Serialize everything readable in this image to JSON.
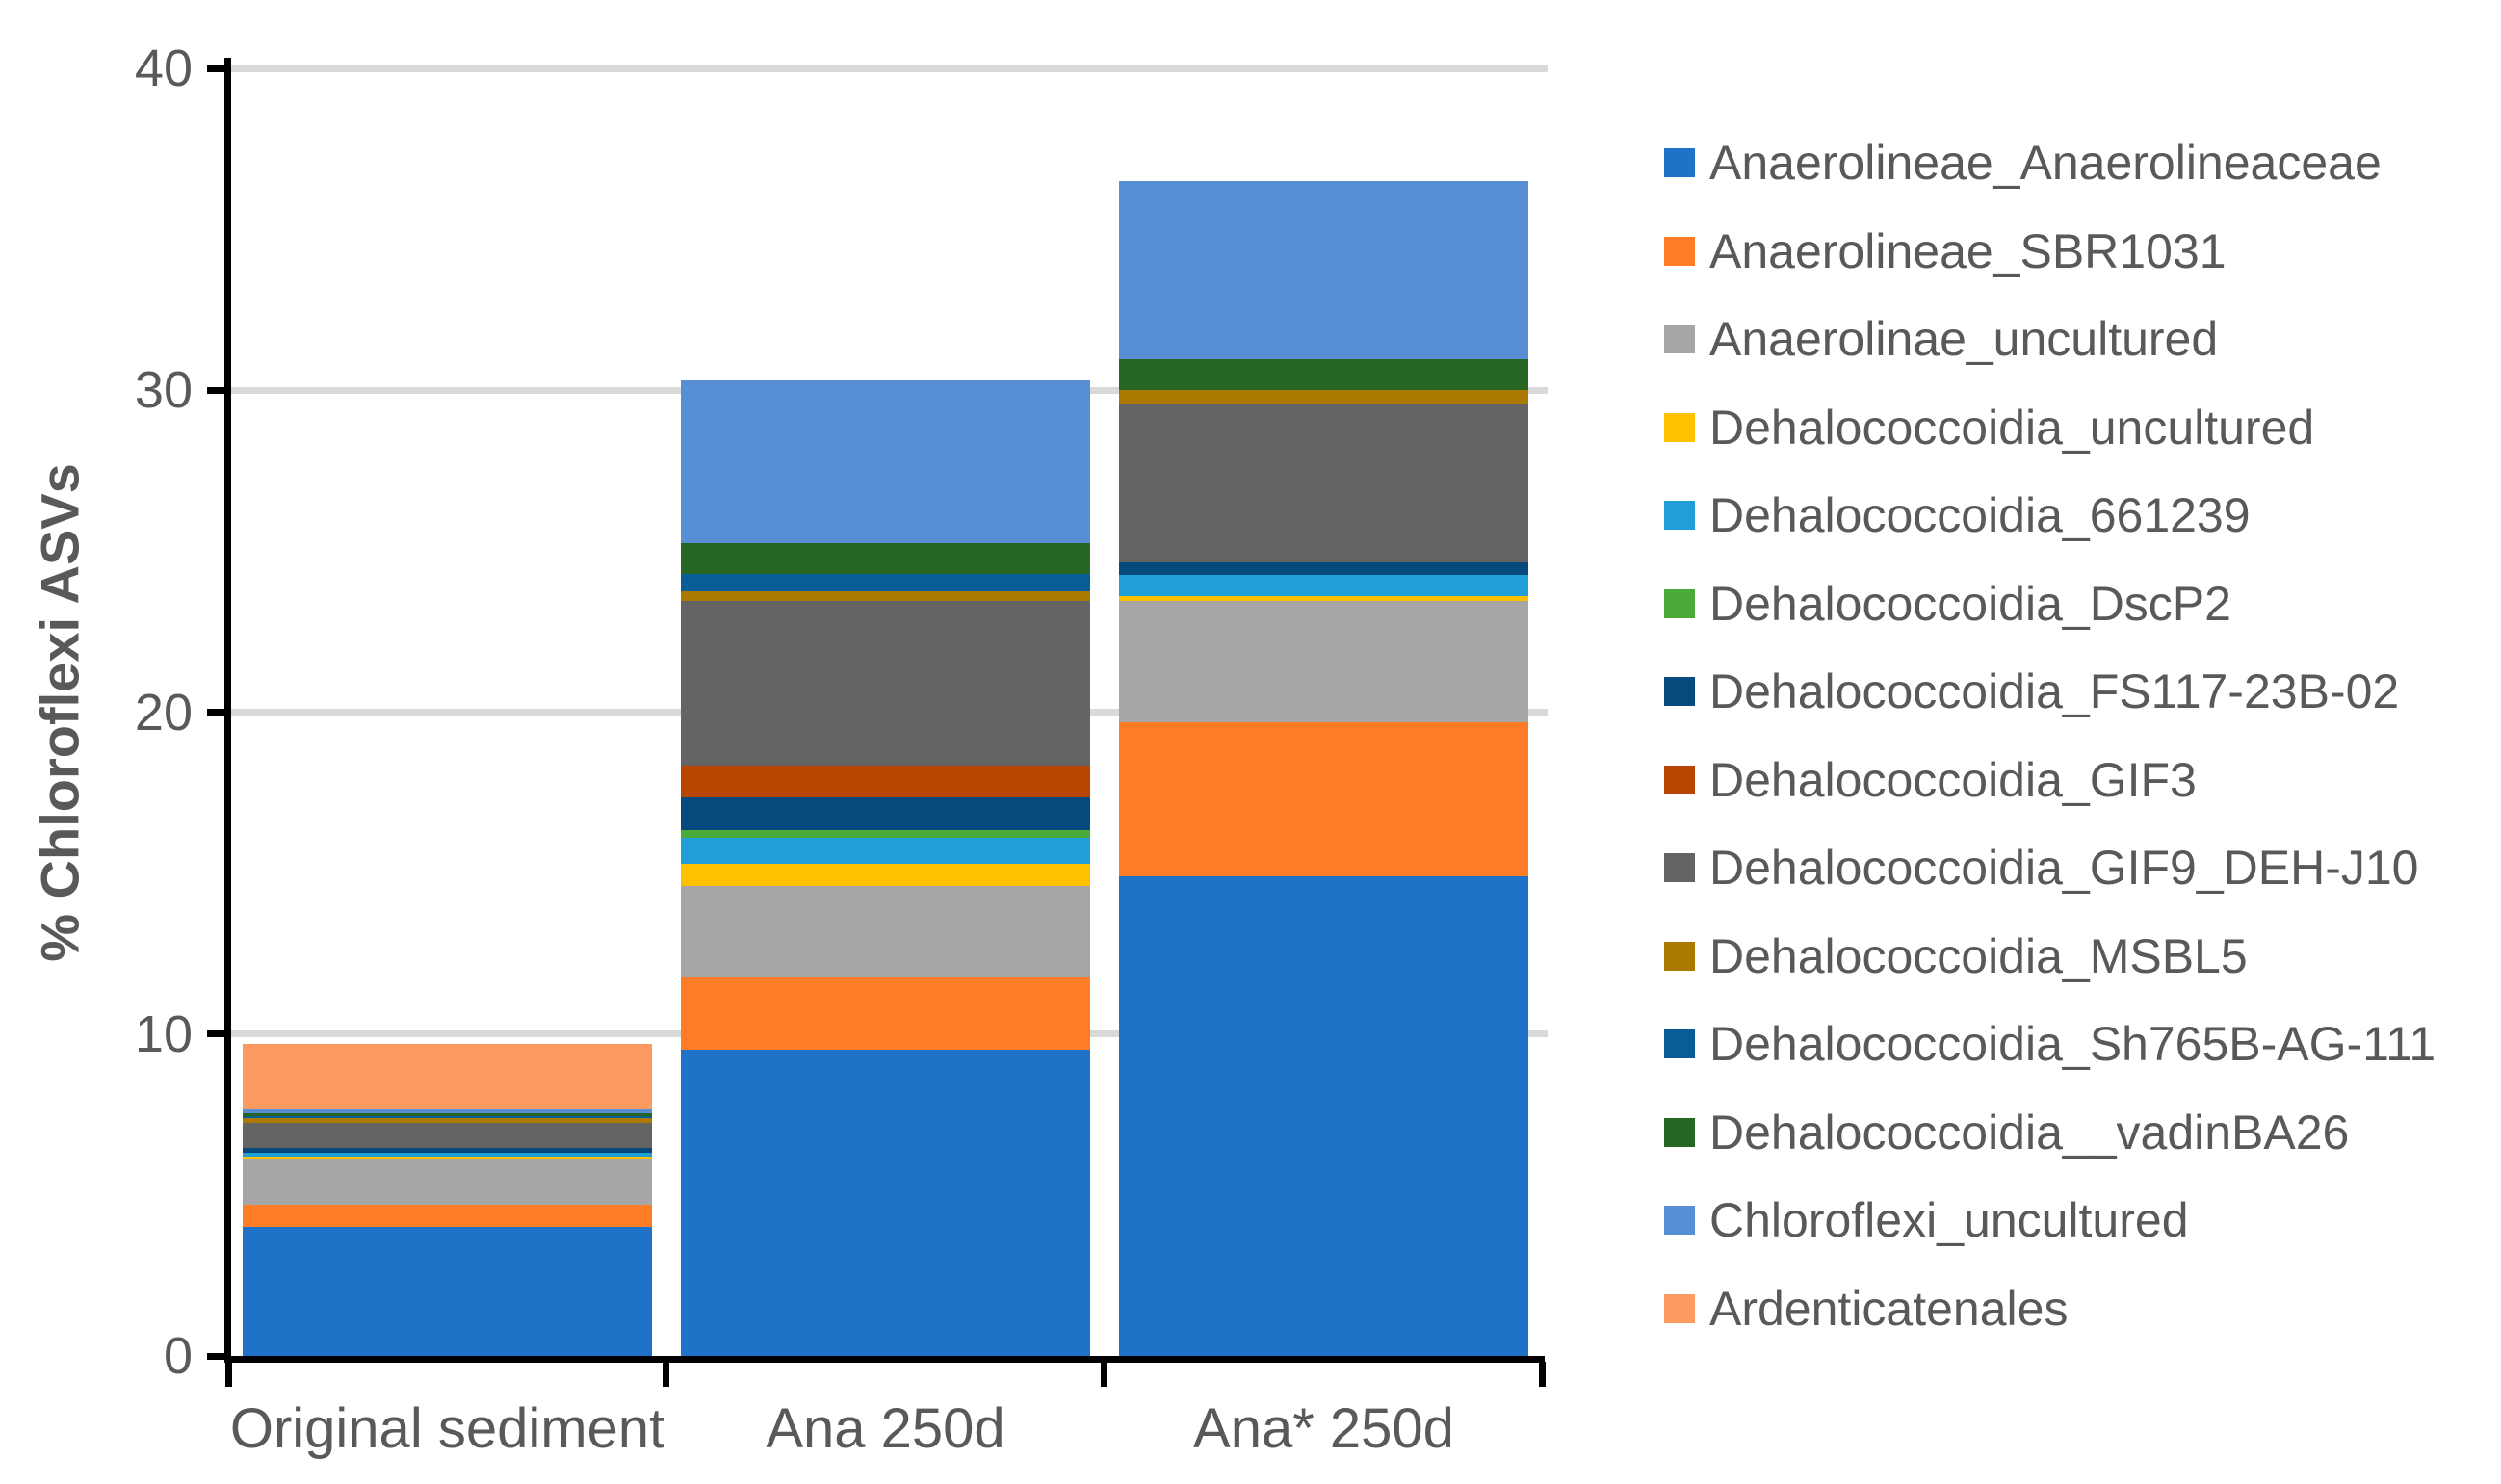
{
  "chart_data": {
    "type": "bar",
    "stacked": true,
    "title": "",
    "xlabel": "",
    "ylabel": "% Chloroflexi ASVs",
    "ylim": [
      0,
      40
    ],
    "yticks": [
      0,
      10,
      20,
      30,
      40
    ],
    "grid": true,
    "legend_position": "right",
    "categories": [
      "Original sediment",
      "Ana 250d",
      "Ana* 250d"
    ],
    "series": [
      {
        "name": "Anaerolineae_Anaerolineaceae",
        "color": "#1E73C8",
        "values": [
          4.0,
          9.5,
          14.9
        ]
      },
      {
        "name": "Anaerolineae_SBR1031",
        "color": "#FC7D26",
        "values": [
          0.7,
          2.25,
          4.8
        ]
      },
      {
        "name": "Anaerolinae_uncultured",
        "color": "#A6A6A6",
        "values": [
          1.4,
          2.85,
          3.75
        ]
      },
      {
        "name": "Dehalococcoidia_uncultured",
        "color": "#FFC000",
        "values": [
          0.1,
          0.7,
          0.15
        ]
      },
      {
        "name": "Dehalococcoidia_661239",
        "color": "#1F9ED8",
        "values": [
          0.1,
          0.8,
          0.65
        ]
      },
      {
        "name": "Dehalococcoidia_DscP2",
        "color": "#4BAB39",
        "values": [
          0,
          0.25,
          0
        ]
      },
      {
        "name": "Dehalococcoidia_FS117-23B-02",
        "color": "#064A7D",
        "values": [
          0.15,
          1.0,
          0.4
        ]
      },
      {
        "name": "Dehalococcoidia_GIF3",
        "color": "#B84500",
        "values": [
          0,
          1.0,
          0
        ]
      },
      {
        "name": "Dehalococcoidia_GIF9_DEH-J10",
        "color": "#646464",
        "values": [
          0.8,
          5.1,
          4.9
        ]
      },
      {
        "name": "Dehalococcoidia_MSBL5",
        "color": "#AA7A00",
        "values": [
          0.15,
          0.3,
          0.45
        ]
      },
      {
        "name": "Dehalococcoidia_Sh765B-AG-111",
        "color": "#075D96",
        "values": [
          0.05,
          0.55,
          0
        ]
      },
      {
        "name": "Dehalococcoidia__vadinBA26",
        "color": "#266622",
        "values": [
          0.1,
          0.95,
          0.95
        ]
      },
      {
        "name": "Chloroflexi_uncultured",
        "color": "#588ED4",
        "values": [
          0.1,
          5.05,
          5.55
        ]
      },
      {
        "name": "Ardenticatenales",
        "color": "#FB9A61",
        "values": [
          2.05,
          0,
          0
        ]
      }
    ]
  },
  "colors": {
    "axis": "#000000",
    "gridline": "#D9D9D9",
    "tick_label": "#595959",
    "axis_title": "#595959",
    "background": "#FFFFFF"
  }
}
